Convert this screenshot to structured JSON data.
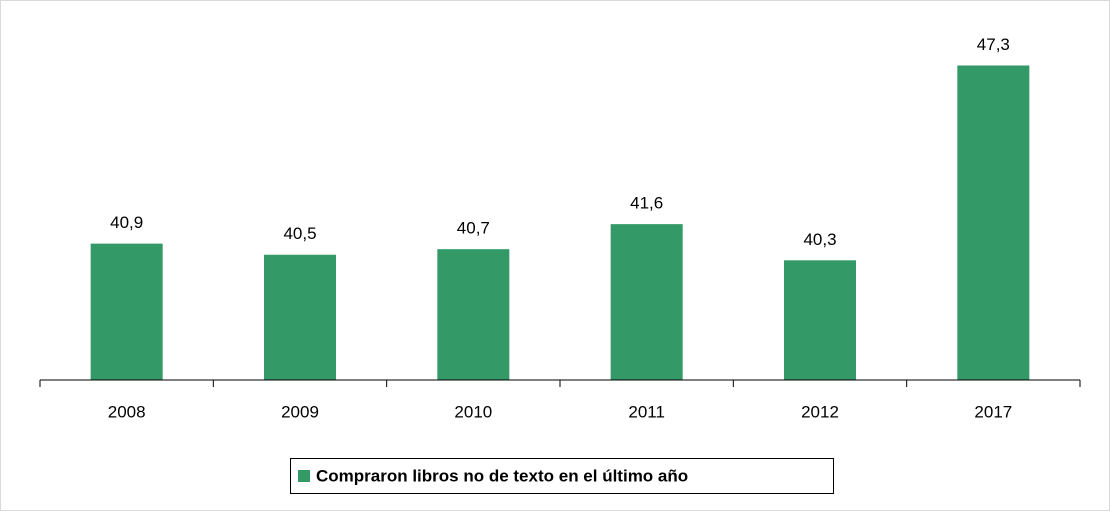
{
  "chart_data": {
    "type": "bar",
    "categories": [
      "2008",
      "2009",
      "2010",
      "2011",
      "2012",
      "2017"
    ],
    "series": [
      {
        "name": "Compraron libros no de texto en el último año",
        "color": "#339966",
        "values": [
          40.9,
          40.5,
          40.7,
          41.6,
          40.3,
          47.3
        ],
        "value_labels": [
          "40,9",
          "40,5",
          "40,7",
          "41,6",
          "40,3",
          "47,3"
        ]
      }
    ],
    "ylim": [
      36,
      48
    ],
    "legend": "bottom"
  }
}
